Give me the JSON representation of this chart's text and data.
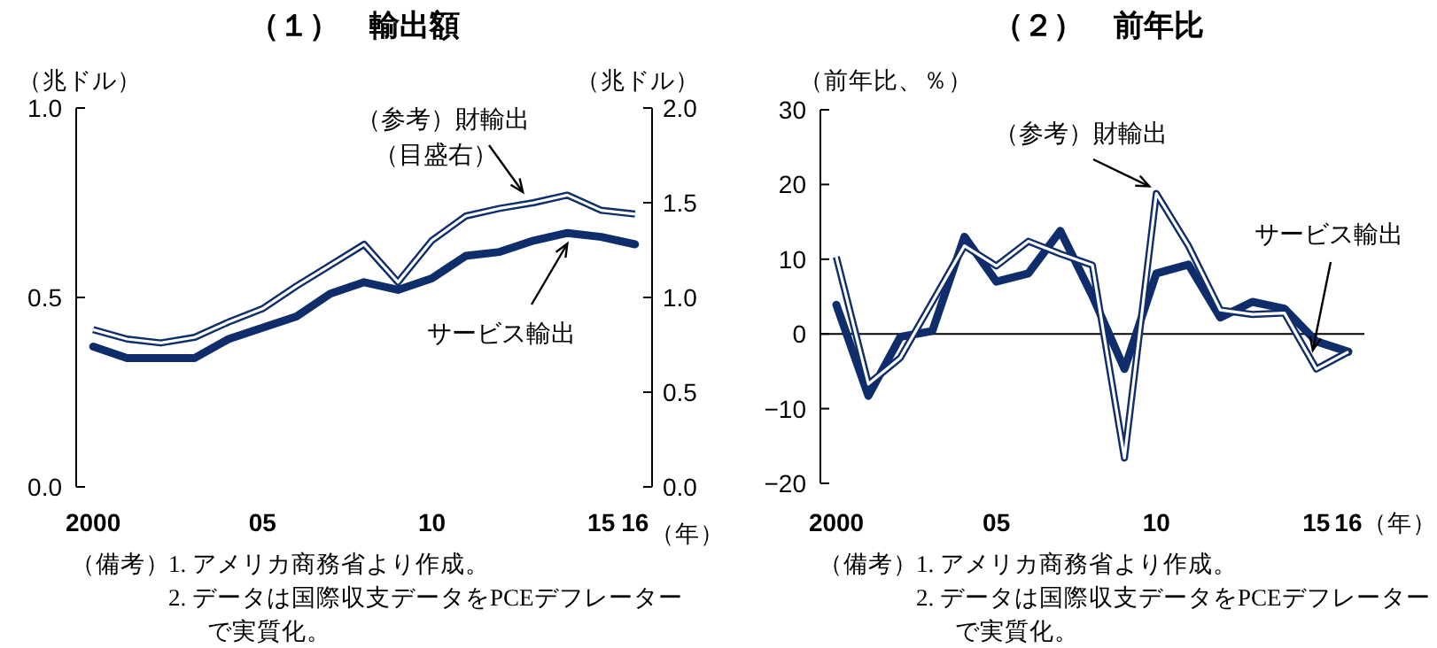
{
  "chart_data": [
    {
      "type": "line",
      "title": "（１）　輸出額",
      "ylabel": "（兆ドル）",
      "y2label": "（兆ドル）",
      "xlabel": "（年）",
      "x": [
        2000,
        2001,
        2002,
        2003,
        2004,
        2005,
        2006,
        2007,
        2008,
        2009,
        2010,
        2011,
        2012,
        2013,
        2014,
        2015,
        2016
      ],
      "xlim": [
        1999.5,
        2016.5
      ],
      "xticks": [
        {
          "value": 2000,
          "label": "2000"
        },
        {
          "value": 2005,
          "label": "05"
        },
        {
          "value": 2010,
          "label": "10"
        },
        {
          "value": 2015,
          "label": "15"
        },
        {
          "value": 2016,
          "label": "16"
        }
      ],
      "ylim": [
        0,
        1
      ],
      "yticks": [
        {
          "value": 0,
          "label": "0.0"
        },
        {
          "value": 0.5,
          "label": "0.5"
        },
        {
          "value": 1,
          "label": "1.0"
        }
      ],
      "y2lim": [
        0,
        2
      ],
      "y2ticks": [
        {
          "value": 0,
          "label": "0.0"
        },
        {
          "value": 0.5,
          "label": "0.5"
        },
        {
          "value": 1,
          "label": "1.0"
        },
        {
          "value": 1.5,
          "label": "1.5"
        },
        {
          "value": 2,
          "label": "2.0"
        }
      ],
      "series": [
        {
          "name": "サービス輸出",
          "color": "#0f2d6b",
          "values": [
            0.37,
            0.34,
            0.34,
            0.34,
            0.39,
            0.42,
            0.45,
            0.51,
            0.54,
            0.52,
            0.55,
            0.61,
            0.62,
            0.65,
            0.67,
            0.66,
            0.64
          ]
        },
        {
          "name": "（参考）財輸出",
          "color": "#0f2d6b",
          "axis": "y2",
          "values": [
            0.83,
            0.78,
            0.76,
            0.79,
            0.87,
            0.94,
            1.06,
            1.17,
            1.28,
            1.08,
            1.3,
            1.43,
            1.47,
            1.5,
            1.54,
            1.46,
            1.44
          ]
        }
      ],
      "annotations": [
        "（目盛右）",
        "（備考）",
        "1.  アメリカ商務省より作成。",
        "2.  データは国際収支データをPCEデフレーターで実質化。"
      ]
    },
    {
      "type": "line",
      "title": "（２）　前年比",
      "ylabel": "（前年比、％）",
      "xlabel": "（年）",
      "x": [
        2000,
        2001,
        2002,
        2003,
        2004,
        2005,
        2006,
        2007,
        2008,
        2009,
        2010,
        2011,
        2012,
        2013,
        2014,
        2015,
        2016
      ],
      "xlim": [
        1999.5,
        2016.5
      ],
      "xticks": [
        {
          "value": 2000,
          "label": "2000"
        },
        {
          "value": 2005,
          "label": "05"
        },
        {
          "value": 2010,
          "label": "10"
        },
        {
          "value": 2015,
          "label": "15"
        },
        {
          "value": 2016,
          "label": "16"
        }
      ],
      "ylim": [
        -20,
        30
      ],
      "yticks": [
        -20,
        -10,
        0,
        10,
        20,
        30
      ],
      "ref_lines": [
        {
          "axis": "y",
          "value": 0,
          "color": "#000000"
        }
      ],
      "series": [
        {
          "name": "サービス輸出",
          "color": "#0f2d6b",
          "values": [
            3.9,
            -8.3,
            -0.4,
            0.4,
            13.0,
            7.0,
            8.1,
            13.8,
            5.1,
            -4.7,
            8.1,
            9.3,
            2.2,
            4.3,
            3.4,
            -1.0,
            -2.4
          ]
        },
        {
          "name": "（参考）財輸出",
          "color": "#0f2d6b",
          "values": [
            10.3,
            -6.7,
            -3.2,
            4.3,
            11.8,
            9.1,
            12.4,
            10.7,
            9.2,
            -16.6,
            18.8,
            11.8,
            3.2,
            2.6,
            2.8,
            -4.7,
            -2.4
          ]
        }
      ],
      "annotations": [
        "（備考）",
        "1.  アメリカ商務省より作成。",
        "2.  データは国際収支データをPCEデフレーターで実質化。"
      ]
    }
  ]
}
